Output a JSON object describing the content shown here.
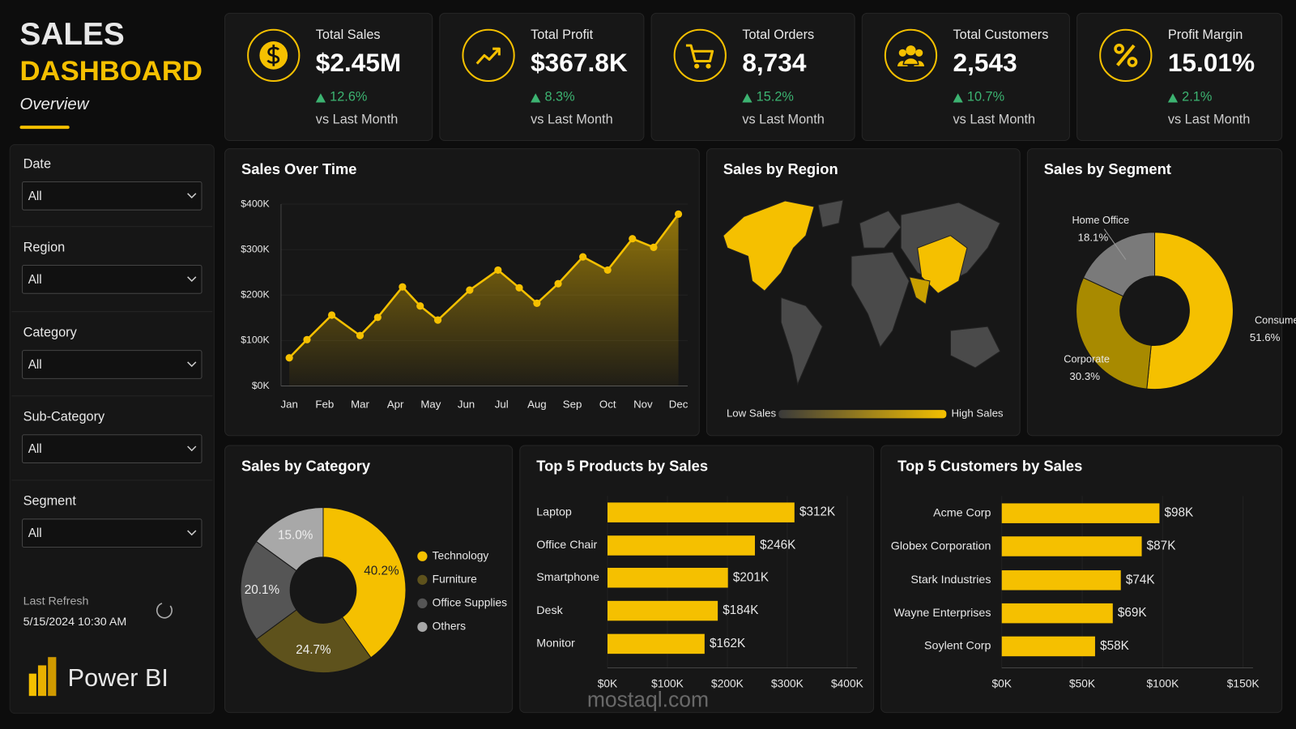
{
  "header": {
    "title_line1": "SALES",
    "title_line2": "DASHBOARD",
    "subtitle": "Overview"
  },
  "kpis": [
    {
      "label": "Total Sales",
      "value": "$2.45M",
      "change": "12.6%",
      "note": "vs Last Month"
    },
    {
      "label": "Total Profit",
      "value": "$367.8K",
      "change": "8.3%",
      "note": "vs Last Month"
    },
    {
      "label": "Total Orders",
      "value": "8,734",
      "change": "15.2%",
      "note": "vs Last Month"
    },
    {
      "label": "Total Customers",
      "value": "2,543",
      "change": "10.7%",
      "note": "vs Last Month"
    },
    {
      "label": "Profit Margin",
      "value": "15.01%",
      "change": "2.1%",
      "note": "vs Last Month"
    }
  ],
  "filters": [
    {
      "label": "Date",
      "value": "All"
    },
    {
      "label": "Region",
      "value": "All"
    },
    {
      "label": "Category",
      "value": "All"
    },
    {
      "label": "Sub-Category",
      "value": "All"
    },
    {
      "label": "Segment",
      "value": "All"
    }
  ],
  "refresh": {
    "label": "Last Refresh",
    "value": "5/15/2024 10:30 AM"
  },
  "brand": "Power BI",
  "watermark": "mostaql.com",
  "chart_data": [
    {
      "type": "line",
      "title": "Sales Over Time",
      "color": "#f5c000",
      "x": [
        0,
        0.5,
        1.2,
        2,
        2.5,
        3.2,
        3.7,
        4.2,
        5.1,
        5.9,
        6.5,
        7,
        7.6,
        8.3,
        9,
        9.7,
        10.3,
        11
      ],
      "values": [
        62000,
        102000,
        156000,
        111000,
        151000,
        218000,
        176000,
        145000,
        211000,
        255000,
        216000,
        182000,
        225000,
        284000,
        255000,
        324000,
        305000,
        378000
      ],
      "xlim": [
        -0.2,
        11.3
      ],
      "xticks": [
        {
          "value": 0,
          "label": "Jan"
        },
        {
          "value": 1,
          "label": "Feb"
        },
        {
          "value": 2,
          "label": "Mar"
        },
        {
          "value": 3,
          "label": "Apr"
        },
        {
          "value": 4,
          "label": "May"
        },
        {
          "value": 5,
          "label": "Jun"
        },
        {
          "value": 6,
          "label": "Jul"
        },
        {
          "value": 7,
          "label": "Aug"
        },
        {
          "value": 8,
          "label": "Sep"
        },
        {
          "value": 9,
          "label": "Oct"
        },
        {
          "value": 10,
          "label": "Nov"
        },
        {
          "value": 11,
          "label": "Dec"
        }
      ],
      "ylim": [
        0,
        400000
      ],
      "yticks": [
        {
          "value": 0,
          "label": "$0K"
        },
        {
          "value": 100000,
          "label": "$100K"
        },
        {
          "value": 200000,
          "label": "$200K"
        },
        {
          "value": 300000,
          "label": "$300K"
        },
        {
          "value": 400000,
          "label": "$400K"
        }
      ]
    },
    {
      "type": "map",
      "title": "Sales by Region",
      "legend_low": "Low Sales",
      "legend_high": "High Sales"
    },
    {
      "type": "donut",
      "title": "Sales by Segment",
      "categories": [
        "Consumer",
        "Corporate",
        "Home Office"
      ],
      "values": [
        51.6,
        30.3,
        18.1
      ],
      "value_labels": [
        "51.6%",
        "30.3%",
        "18.1%"
      ],
      "colors": [
        "#f5c000",
        "#a88a00",
        "#7a7a7a"
      ]
    },
    {
      "type": "donut",
      "title": "Sales by Category",
      "categories": [
        "Technology",
        "Furniture",
        "Office Supplies",
        "Others"
      ],
      "values": [
        40.2,
        24.7,
        20.1,
        15.0
      ],
      "value_labels": [
        "40.2%",
        "24.7%",
        "20.1%",
        "15.0%"
      ],
      "colors": [
        "#f5c000",
        "#5e521c",
        "#555555",
        "#a8a8a8"
      ],
      "legend": "right"
    },
    {
      "type": "hbar",
      "title": "Top 5 Products by Sales",
      "color": "#f5c000",
      "categories": [
        "Laptop",
        "Office Chair",
        "Smartphone",
        "Desk",
        "Monitor"
      ],
      "values": [
        312000,
        246000,
        201000,
        184000,
        162000
      ],
      "value_labels": [
        "$312K",
        "$246K",
        "$201K",
        "$184K",
        "$162K"
      ],
      "xlim": [
        0,
        400000
      ],
      "xticks": [
        {
          "value": 0,
          "label": "$0K"
        },
        {
          "value": 100000,
          "label": "$100K"
        },
        {
          "value": 200000,
          "label": "$200K"
        },
        {
          "value": 300000,
          "label": "$300K"
        },
        {
          "value": 400000,
          "label": "$400K"
        }
      ]
    },
    {
      "type": "hbar",
      "title": "Top 5 Customers by Sales",
      "color": "#f5c000",
      "categories": [
        "Acme Corp",
        "Globex Corporation",
        "Stark Industries",
        "Wayne Enterprises",
        "Soylent Corp"
      ],
      "values": [
        98000,
        87000,
        74000,
        69000,
        58000
      ],
      "value_labels": [
        "$98K",
        "$87K",
        "$74K",
        "$69K",
        "$58K"
      ],
      "xlim": [
        0,
        150000
      ],
      "xticks": [
        {
          "value": 0,
          "label": "$0K"
        },
        {
          "value": 50000,
          "label": "$50K"
        },
        {
          "value": 100000,
          "label": "$100K"
        },
        {
          "value": 150000,
          "label": "$150K"
        }
      ]
    }
  ]
}
